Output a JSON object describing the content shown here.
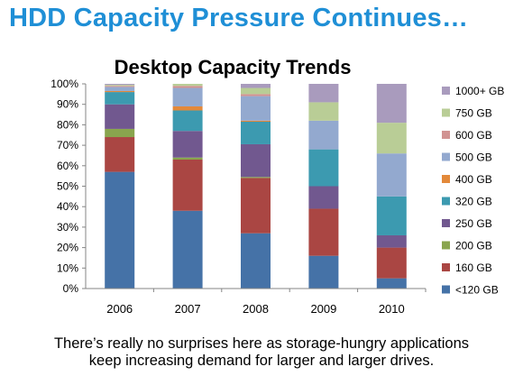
{
  "slide": {
    "title": "HDD Capacity Pressure Continues…",
    "caption_line1": "There’s really no surprises here as storage-hungry applications",
    "caption_line2": "keep increasing demand for larger and larger drives."
  },
  "chart_data": {
    "type": "bar",
    "stacked": true,
    "title": "Desktop Capacity Trends",
    "xlabel": "",
    "ylabel": "",
    "ylim": [
      0,
      100
    ],
    "yticks": [
      "0%",
      "10%",
      "20%",
      "30%",
      "40%",
      "50%",
      "60%",
      "70%",
      "80%",
      "90%",
      "100%"
    ],
    "categories": [
      "2006",
      "2007",
      "2008",
      "2009",
      "2010"
    ],
    "legend_position": "right",
    "grid": false,
    "series": [
      {
        "name": "<120 GB",
        "color": "#4572a7",
        "values": [
          57,
          38,
          27,
          16,
          5
        ]
      },
      {
        "name": "160 GB",
        "color": "#aa4643",
        "values": [
          17,
          25,
          27,
          23,
          15
        ]
      },
      {
        "name": "200 GB",
        "color": "#89a54e",
        "values": [
          4,
          1,
          0.5,
          0,
          0
        ]
      },
      {
        "name": "250 GB",
        "color": "#71588f",
        "values": [
          12,
          13,
          16,
          11,
          6
        ]
      },
      {
        "name": "320 GB",
        "color": "#3c9ab0",
        "values": [
          6,
          10,
          11,
          18,
          19
        ]
      },
      {
        "name": "400 GB",
        "color": "#e3893a",
        "values": [
          0.5,
          2,
          0.5,
          0,
          0
        ]
      },
      {
        "name": "500 GB",
        "color": "#93a9cf",
        "values": [
          2,
          9,
          12,
          14,
          21
        ]
      },
      {
        "name": "600 GB",
        "color": "#d19392",
        "values": [
          0.5,
          1,
          1,
          0,
          0
        ]
      },
      {
        "name": "750 GB",
        "color": "#b9cd96",
        "values": [
          0.5,
          1,
          3,
          9,
          15
        ]
      },
      {
        "name": "1000+ GB",
        "color": "#a99bbd",
        "values": [
          0.5,
          0,
          2,
          9,
          19
        ]
      }
    ]
  }
}
